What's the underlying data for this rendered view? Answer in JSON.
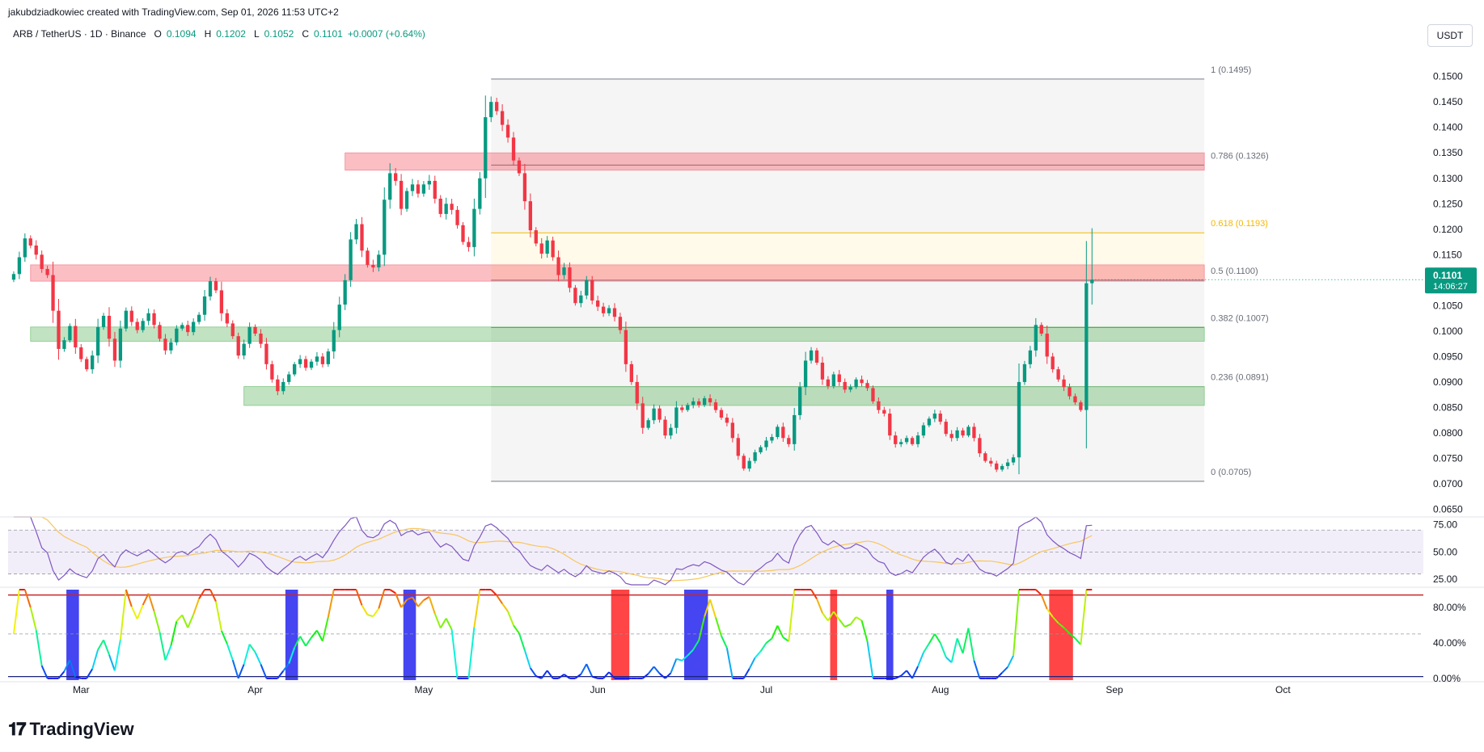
{
  "header": {
    "attribution": "jakubdziadkowiec created with TradingView.com, Sep 01, 2026 11:53 UTC+2",
    "symbol": "ARB / TetherUS · 1D · Binance",
    "open_label": "O",
    "open": "0.1094",
    "high_label": "H",
    "high": "0.1202",
    "low_label": "L",
    "low": "0.1052",
    "close_label": "C",
    "close": "0.1101",
    "change": "+0.0007 (+0.64%)",
    "currency": "USDT"
  },
  "price_tag": {
    "price": "0.1101",
    "countdown": "14:06:27"
  },
  "brand": {
    "name": "TradingView"
  },
  "colors": {
    "up": "#089981",
    "down": "#f23645",
    "rsi": "#7e57c2",
    "rsi_ma": "#f7c65c",
    "fib_618": "#f5b700"
  },
  "chart_data": [
    {
      "type": "candlestick",
      "title": "ARB / TetherUS · 1D · Binance",
      "y_ticks": [
        "0.1500",
        "0.1450",
        "0.1400",
        "0.1350",
        "0.1300",
        "0.1250",
        "0.1200",
        "0.1150",
        "0.1100",
        "0.1050",
        "0.1000",
        "0.0950",
        "0.0900",
        "0.0850",
        "0.0800",
        "0.0750",
        "0.0700",
        "0.0650"
      ],
      "ylim": [
        0.0635,
        0.1555
      ],
      "x_ticks": [
        "Mar",
        "Apr",
        "May",
        "Jun",
        "Jul",
        "Aug",
        "Sep",
        "Oct"
      ],
      "x_tick_days": [
        13,
        44,
        74,
        105,
        135,
        166,
        197,
        227
      ],
      "xlim": [
        0,
        252
      ],
      "last_price": 0.1101,
      "fib_levels": [
        {
          "ratio": "1",
          "label": "1 (0.1495)",
          "value": 0.1495
        },
        {
          "ratio": "0.786",
          "label": "0.786 (0.1326)",
          "value": 0.1326
        },
        {
          "ratio": "0.618",
          "label": "0.618 (0.1193)",
          "value": 0.1193
        },
        {
          "ratio": "0.5",
          "label": "0.5 (0.1100)",
          "value": 0.11
        },
        {
          "ratio": "0.382",
          "label": "0.382 (0.1007)",
          "value": 0.1007
        },
        {
          "ratio": "0.236",
          "label": "0.236 (0.0891)",
          "value": 0.0891
        },
        {
          "ratio": "0",
          "label": "0 (0.0705)",
          "value": 0.0705
        }
      ],
      "fib_range_days": [
        86,
        213
      ],
      "zones": [
        {
          "kind": "resistance",
          "day_start": 60,
          "day_end": 213,
          "low": 0.1316,
          "high": 0.135
        },
        {
          "kind": "resistance",
          "day_start": 4,
          "day_end": 213,
          "low": 0.1098,
          "high": 0.113
        },
        {
          "kind": "support",
          "day_start": 4,
          "day_end": 213,
          "low": 0.098,
          "high": 0.1008
        },
        {
          "kind": "support",
          "day_start": 42,
          "day_end": 213,
          "low": 0.0854,
          "high": 0.0891
        }
      ],
      "closes": [
        0.1112,
        0.1145,
        0.1182,
        0.1168,
        0.115,
        0.1122,
        0.111,
        0.104,
        0.0965,
        0.0982,
        0.101,
        0.0968,
        0.0945,
        0.0925,
        0.0952,
        0.1008,
        0.103,
        0.0985,
        0.0942,
        0.1005,
        0.104,
        0.1018,
        0.1002,
        0.102,
        0.1035,
        0.1012,
        0.0985,
        0.0962,
        0.0978,
        0.1005,
        0.1012,
        0.0998,
        0.1018,
        0.1032,
        0.1068,
        0.1098,
        0.108,
        0.1035,
        0.1015,
        0.099,
        0.0952,
        0.0975,
        0.1008,
        0.0995,
        0.0975,
        0.0935,
        0.0905,
        0.0882,
        0.09,
        0.0915,
        0.0935,
        0.0945,
        0.0928,
        0.094,
        0.095,
        0.0935,
        0.096,
        0.1002,
        0.1052,
        0.11,
        0.118,
        0.121,
        0.1158,
        0.113,
        0.1125,
        0.115,
        0.1258,
        0.131,
        0.1295,
        0.124,
        0.1275,
        0.1288,
        0.127,
        0.1288,
        0.1295,
        0.126,
        0.123,
        0.125,
        0.1238,
        0.1208,
        0.1175,
        0.1165,
        0.124,
        0.13,
        0.142,
        0.145,
        0.1432,
        0.1405,
        0.138,
        0.1335,
        0.131,
        0.1255,
        0.1198,
        0.1172,
        0.1152,
        0.1178,
        0.1145,
        0.111,
        0.1125,
        0.1085,
        0.1055,
        0.107,
        0.11,
        0.106,
        0.1048,
        0.1035,
        0.1045,
        0.1028,
        0.1002,
        0.0935,
        0.09,
        0.0858,
        0.081,
        0.0825,
        0.0848,
        0.0826,
        0.0795,
        0.081,
        0.085,
        0.0845,
        0.0855,
        0.0862,
        0.0855,
        0.0868,
        0.086,
        0.0845,
        0.083,
        0.082,
        0.079,
        0.0755,
        0.073,
        0.0745,
        0.0762,
        0.0772,
        0.0785,
        0.0792,
        0.0812,
        0.079,
        0.0778,
        0.0835,
        0.089,
        0.0942,
        0.0962,
        0.0938,
        0.0905,
        0.0892,
        0.0915,
        0.09,
        0.0885,
        0.089,
        0.0905,
        0.0898,
        0.0888,
        0.0862,
        0.0845,
        0.0838,
        0.0795,
        0.0778,
        0.0782,
        0.079,
        0.0778,
        0.0795,
        0.0815,
        0.0828,
        0.0838,
        0.0822,
        0.0798,
        0.079,
        0.0805,
        0.0795,
        0.0812,
        0.079,
        0.076,
        0.0745,
        0.074,
        0.0728,
        0.0735,
        0.0742,
        0.0752,
        0.09,
        0.0935,
        0.0962,
        0.1012,
        0.0995,
        0.095,
        0.0925,
        0.0905,
        0.089,
        0.0872,
        0.086,
        0.0845,
        0.1094,
        0.1101
      ]
    },
    {
      "type": "line",
      "title": "RSI",
      "y_ticks": [
        "75.00",
        "50.00",
        "25.00"
      ],
      "bands": [
        30,
        70
      ],
      "ylim": [
        20,
        82
      ],
      "series": [
        {
          "values": [],
          "derived_from": "closes"
        },
        {
          "values": [],
          "derived_from": "rsi"
        }
      ]
    },
    {
      "type": "line",
      "title": "Stochastic",
      "y_ticks": [
        "80.00%",
        "40.00%",
        "0.00%"
      ],
      "ylim": [
        -2,
        100
      ],
      "extreme_signals": [
        {
          "kind": "oversold",
          "day_start": 11,
          "day_end": 12
        },
        {
          "kind": "oversold",
          "day_start": 50,
          "day_end": 51
        },
        {
          "kind": "oversold",
          "day_start": 71,
          "day_end": 72
        },
        {
          "kind": "overbought",
          "day_start": 108,
          "day_end": 110
        },
        {
          "kind": "oversold",
          "day_start": 121,
          "day_end": 124
        },
        {
          "kind": "overbought",
          "day_start": 147,
          "day_end": 147
        },
        {
          "kind": "oversold",
          "day_start": 157,
          "day_end": 157
        },
        {
          "kind": "overbought",
          "day_start": 186,
          "day_end": 189
        }
      ]
    }
  ]
}
